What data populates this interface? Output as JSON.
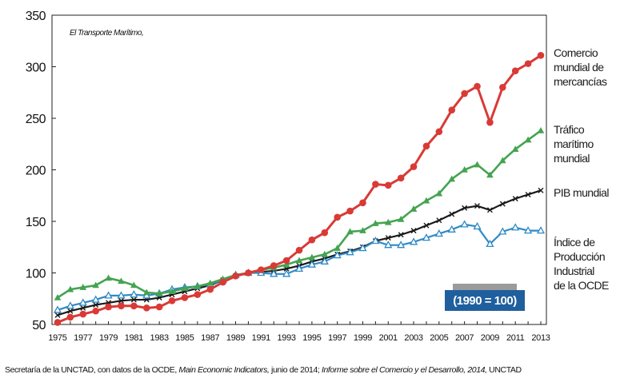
{
  "title": "El Transporte Marítimo,",
  "base_label": "(1990 = 100)",
  "source": {
    "prefix": "Secretaría de la UNCTAD, con datos de la OCDE,",
    "italic1": "Main Economic Indicators,",
    "middle": "junio de 2014;",
    "italic2": "Informe sobre el Comercio y el Desarrollo, 2014,",
    "suffix": "UNCTAD"
  },
  "legend": {
    "trade": "Comercio\nmundial de\nmercancías",
    "shipping": "Tráfico\nmarítimo\nmundial",
    "gdp": "PIB mundial",
    "industrial": "Índice de\nProducción\nIndustrial\nde la OCDE"
  },
  "chart_data": {
    "type": "line",
    "title": "",
    "xlabel": "",
    "ylabel": "",
    "ylim": [
      50,
      350
    ],
    "yticks": [
      50,
      100,
      150,
      200,
      250,
      300,
      350
    ],
    "xlim": [
      1975,
      2013
    ],
    "xticks": [
      1975,
      1977,
      1979,
      1981,
      1983,
      1985,
      1987,
      1989,
      1991,
      1993,
      1995,
      1997,
      1999,
      2001,
      2003,
      2005,
      2007,
      2009,
      2011,
      2013
    ],
    "grid": false,
    "x": [
      1975,
      1976,
      1977,
      1978,
      1979,
      1980,
      1981,
      1982,
      1983,
      1984,
      1985,
      1986,
      1987,
      1988,
      1989,
      1990,
      1991,
      1992,
      1993,
      1994,
      1995,
      1996,
      1997,
      1998,
      1999,
      2000,
      2001,
      2002,
      2003,
      2004,
      2005,
      2006,
      2007,
      2008,
      2009,
      2010,
      2011,
      2012,
      2013
    ],
    "series": [
      {
        "name": "Comercio mundial de mercancías",
        "color": "#d93a36",
        "marker": "circle",
        "values": [
          52,
          57,
          60,
          63,
          67,
          68,
          68,
          66,
          67,
          73,
          76,
          79,
          84,
          91,
          97,
          100,
          103,
          107,
          112,
          122,
          132,
          139,
          154,
          160,
          168,
          186,
          185,
          192,
          203,
          223,
          237,
          258,
          274,
          281,
          246,
          280,
          296,
          303,
          311
        ]
      },
      {
        "name": "Tráfico marítimo mundial",
        "color": "#45a350",
        "marker": "triangle",
        "values": [
          76,
          84,
          86,
          88,
          95,
          92,
          88,
          81,
          80,
          82,
          85,
          87,
          90,
          94,
          98,
          100,
          103,
          105,
          108,
          112,
          115,
          118,
          124,
          140,
          141,
          148,
          149,
          152,
          162,
          170,
          177,
          191,
          200,
          205,
          195,
          209,
          220,
          229,
          238
        ]
      },
      {
        "name": "PIB mundial",
        "color": "#1a1a1a",
        "marker": "cross",
        "values": [
          59,
          63,
          66,
          69,
          71,
          73,
          74,
          74,
          76,
          79,
          82,
          85,
          88,
          93,
          97,
          100,
          101,
          102,
          104,
          107,
          111,
          114,
          118,
          121,
          125,
          131,
          134,
          137,
          141,
          146,
          151,
          157,
          163,
          165,
          161,
          167,
          172,
          176,
          180
        ]
      },
      {
        "name": "Índice de Producción Industrial de la OCDE",
        "color": "#2f8ac6",
        "marker": "open-triangle",
        "values": [
          64,
          68,
          71,
          74,
          78,
          78,
          79,
          78,
          80,
          84,
          86,
          87,
          89,
          93,
          98,
          100,
          100,
          99,
          99,
          104,
          108,
          111,
          117,
          120,
          124,
          131,
          127,
          127,
          130,
          134,
          138,
          142,
          147,
          145,
          128,
          140,
          144,
          141,
          141
        ]
      }
    ]
  }
}
